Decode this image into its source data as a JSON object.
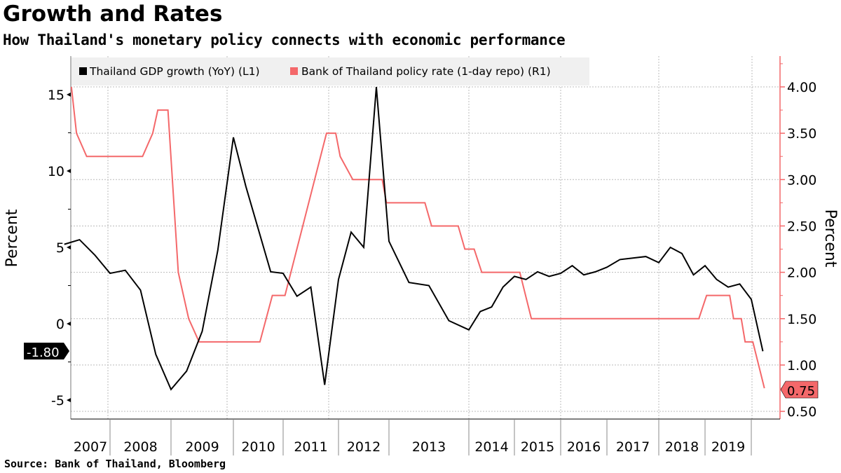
{
  "title": "Growth and Rates",
  "subtitle": "How Thailand's monetary policy connects with economic performance",
  "source": "Source: Bank of Thailand, Bloomberg",
  "chart_data": {
    "type": "line",
    "grid": true,
    "legend_position": "top-left",
    "y_left": {
      "label": "Percent",
      "range": [
        -5.8,
        16
      ],
      "ticks": [
        "15",
        "10",
        "5",
        "0",
        "-5"
      ],
      "tick_values": [
        15,
        10,
        5,
        0,
        -5
      ]
    },
    "y_right": {
      "label": "Percent",
      "range": [
        0.43,
        4.4
      ],
      "ticks": [
        "4.00",
        "3.50",
        "3.00",
        "2.50",
        "2.00",
        "1.50",
        "1.00",
        "0.50"
      ],
      "tick_values": [
        4,
        3.5,
        3,
        2.5,
        2,
        1.5,
        1,
        0.5
      ]
    },
    "x_ticks": [
      "2007",
      "2008",
      "2009",
      "2010",
      "2011",
      "2012",
      "2013",
      "2014",
      "2015",
      "2016",
      "2017",
      "2018",
      "2019"
    ],
    "colors": {
      "gdp": "#000000",
      "rate": "#f4686a",
      "legend_bg": "#f0f0f0"
    },
    "series": [
      {
        "name": "Thailand GDP growth (YoY) (L1)",
        "axis": "left",
        "last_value_label": "-1.80",
        "points": [
          [
            "2007Q2",
            5.2
          ],
          [
            "2007Q3",
            5.5
          ],
          [
            "2007Q4",
            4.5
          ],
          [
            "2008Q1",
            3.3
          ],
          [
            "2008Q2",
            3.5
          ],
          [
            "2008Q3",
            2.2
          ],
          [
            "2008Q4",
            -2.0
          ],
          [
            "2009Q1",
            -4.3
          ],
          [
            "2009Q2",
            -3.1
          ],
          [
            "2009Q3",
            -0.5
          ],
          [
            "2009Q4",
            4.8
          ],
          [
            "2010Q1",
            12.2
          ],
          [
            "2010Q2",
            9.0
          ],
          [
            "2010Q3",
            6.2
          ],
          [
            "2010Q4",
            3.4
          ],
          [
            "2011Q1",
            3.3
          ],
          [
            "2011Q2",
            1.8
          ],
          [
            "2011Q3",
            2.4
          ],
          [
            "2011Q4",
            -4.0
          ],
          [
            "2012Q1",
            2.9
          ],
          [
            "2012Q2",
            6.0
          ],
          [
            "2012Q3",
            5.0
          ],
          [
            "2012Q4",
            15.5
          ],
          [
            "2013Q1",
            5.4
          ],
          [
            "2013Q2",
            2.7
          ],
          [
            "2013Q3",
            2.5
          ],
          [
            "2013Q4",
            0.2
          ],
          [
            "2014Q1",
            -0.4
          ],
          [
            "2014Q2",
            0.8
          ],
          [
            "2014Q3",
            1.1
          ],
          [
            "2014Q4",
            2.4
          ],
          [
            "2015Q1",
            3.1
          ],
          [
            "2015Q2",
            2.9
          ],
          [
            "2015Q3",
            3.4
          ],
          [
            "2015Q4",
            3.1
          ],
          [
            "2016Q1",
            3.3
          ],
          [
            "2016Q2",
            3.8
          ],
          [
            "2016Q3",
            3.2
          ],
          [
            "2016Q4",
            3.4
          ],
          [
            "2017Q1",
            3.7
          ],
          [
            "2017Q2",
            4.2
          ],
          [
            "2017Q3",
            4.3
          ],
          [
            "2017Q4",
            4.4
          ],
          [
            "2018Q1",
            4.0
          ],
          [
            "2018Q2",
            5.0
          ],
          [
            "2018Q3",
            4.6
          ],
          [
            "2018Q4",
            3.2
          ],
          [
            "2019Q1",
            3.8
          ],
          [
            "2019Q2",
            2.9
          ],
          [
            "2019Q3",
            2.4
          ],
          [
            "2019Q4",
            2.6
          ],
          [
            "2020Q1",
            1.6
          ],
          [
            "2020Q2",
            -1.8
          ]
        ]
      },
      {
        "name": "Bank of Thailand policy rate (1-day repo) (R1)",
        "axis": "right",
        "last_value_label": "0.75",
        "points": [
          [
            "2007-05",
            4.0
          ],
          [
            "2007-06",
            3.5
          ],
          [
            "2007-08",
            3.25
          ],
          [
            "2008-07",
            3.25
          ],
          [
            "2008-09",
            3.5
          ],
          [
            "2008-10",
            3.75
          ],
          [
            "2008-12",
            3.75
          ],
          [
            "2009-02",
            2.0
          ],
          [
            "2009-04",
            1.5
          ],
          [
            "2009-06",
            1.25
          ],
          [
            "2010-07",
            1.25
          ],
          [
            "2010-10",
            1.75
          ],
          [
            "2011-01",
            1.75
          ],
          [
            "2011-10",
            3.5
          ],
          [
            "2011-12",
            3.5
          ],
          [
            "2012-01",
            3.25
          ],
          [
            "2012-04",
            3.0
          ],
          [
            "2012-11",
            3.0
          ],
          [
            "2012-12",
            2.75
          ],
          [
            "2013-06",
            2.75
          ],
          [
            "2013-07",
            2.5
          ],
          [
            "2013-11",
            2.5
          ],
          [
            "2013-12",
            2.25
          ],
          [
            "2014-02",
            2.25
          ],
          [
            "2014-04",
            2.0
          ],
          [
            "2015-02",
            2.0
          ],
          [
            "2015-05",
            1.5
          ],
          [
            "2018-11",
            1.5
          ],
          [
            "2019-01",
            1.75
          ],
          [
            "2019-07",
            1.75
          ],
          [
            "2019-08",
            1.5
          ],
          [
            "2019-10",
            1.5
          ],
          [
            "2019-11",
            1.25
          ],
          [
            "2020-01",
            1.25
          ],
          [
            "2020-04",
            0.75
          ]
        ]
      }
    ]
  }
}
